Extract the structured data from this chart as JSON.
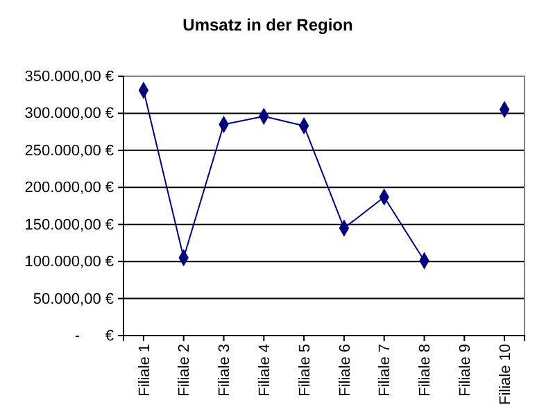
{
  "chart_data": {
    "type": "line",
    "title": "Umsatz in der Region",
    "categories": [
      "Filiale 1",
      "Filiale 2",
      "Filiale 3",
      "Filiale 4",
      "Filiale 5",
      "Filiale 6",
      "Filiale 7",
      "Filiale 8",
      "Filiale 9",
      "Filiale 10"
    ],
    "series": [
      {
        "color": "#000080",
        "values": [
          331000,
          105000,
          285000,
          296000,
          283000,
          145000,
          187000,
          101000,
          null,
          305000
        ]
      }
    ],
    "ylim": [
      0,
      350000
    ],
    "yticks": [
      {
        "value": 0,
        "label": "-      €"
      },
      {
        "value": 50000,
        "label": "50.000,00 €"
      },
      {
        "value": 100000,
        "label": "100.000,00 €"
      },
      {
        "value": 150000,
        "label": "150.000,00 €"
      },
      {
        "value": 200000,
        "label": "200.000,00 €"
      },
      {
        "value": 250000,
        "label": "250.000,00 €"
      },
      {
        "value": 300000,
        "label": "300.000,00 €"
      },
      {
        "value": 350000,
        "label": "350.000,00 €"
      }
    ],
    "grid": "y",
    "marker": "diamond",
    "line_style": "solid"
  }
}
